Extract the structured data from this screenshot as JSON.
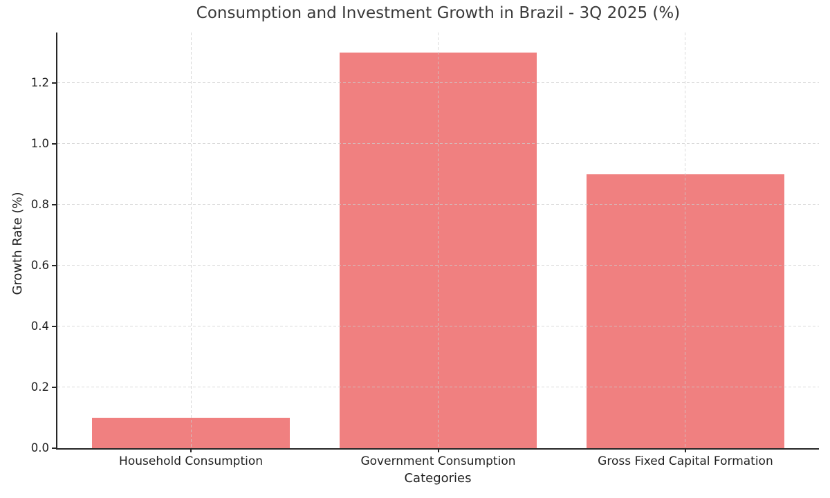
{
  "chart_data": {
    "type": "bar",
    "title": "Consumption and Investment Growth in Brazil - 3Q 2025 (%)",
    "xlabel": "Categories",
    "ylabel": "Growth Rate (%)",
    "categories": [
      "Household Consumption",
      "Government Consumption",
      "Gross Fixed Capital Formation"
    ],
    "values": [
      0.1,
      1.3,
      0.9
    ],
    "bar_color": "#F08080",
    "bar_width": 0.8,
    "ylim": [
      0,
      1.365
    ],
    "yticks": [
      0.0,
      0.2,
      0.4,
      0.6,
      0.8,
      1.0,
      1.2
    ],
    "ytick_decimals": 1,
    "xlim": [
      -0.54,
      2.54
    ],
    "grid": {
      "on": true,
      "style": "dashed",
      "color": "#cccccc",
      "above_bars": true
    },
    "legend": {
      "visible": false
    },
    "axis_color": "#262626",
    "text_color": "#1f1f1f",
    "title_color": "#3a3a3a",
    "background_color": "#ffffff"
  }
}
